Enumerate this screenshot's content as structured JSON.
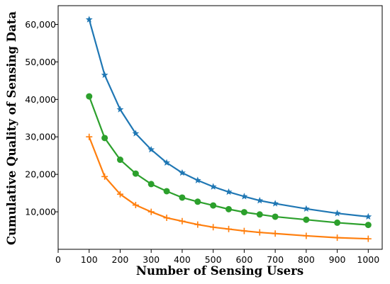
{
  "chart_data": {
    "type": "line",
    "xlabel": "Number of Sensing Users",
    "ylabel": "Cumulative Quality of Sensing Data",
    "xlim": [
      0,
      1045
    ],
    "ylim": [
      0,
      65000
    ],
    "x_ticks": [
      0,
      100,
      200,
      300,
      400,
      500,
      600,
      700,
      800,
      900,
      1000
    ],
    "x_tick_labels": [
      "0",
      "100",
      "200",
      "300",
      "400",
      "500",
      "600",
      "700",
      "800",
      "900",
      "1000"
    ],
    "y_ticks": [
      10000,
      20000,
      30000,
      40000,
      50000,
      60000
    ],
    "y_tick_labels": [
      "10,000",
      "20,000",
      "30,000",
      "40,000",
      "50,000",
      "60,000"
    ],
    "grid": false,
    "x": [
      100,
      150,
      200,
      250,
      300,
      350,
      400,
      450,
      500,
      550,
      600,
      650,
      700,
      800,
      900,
      1000
    ],
    "series": [
      {
        "color": "#1f77b4",
        "marker": "star",
        "values": [
          61300,
          46500,
          37300,
          30900,
          26600,
          23100,
          20400,
          18400,
          16700,
          15300,
          14100,
          13000,
          12200,
          10800,
          9600,
          8700
        ]
      },
      {
        "color": "#2ca02c",
        "marker": "circle",
        "values": [
          40800,
          29700,
          23900,
          20200,
          17400,
          15500,
          13800,
          12700,
          11700,
          10700,
          9900,
          9300,
          8700,
          7900,
          7100,
          6500
        ]
      },
      {
        "color": "#ff7f0e",
        "marker": "plus",
        "values": [
          30000,
          19400,
          14700,
          11800,
          10000,
          8400,
          7500,
          6600,
          5900,
          5400,
          4900,
          4500,
          4200,
          3600,
          3100,
          2800
        ]
      }
    ]
  }
}
